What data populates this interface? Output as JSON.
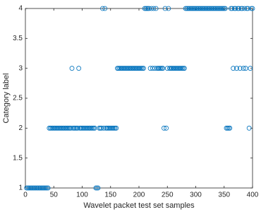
{
  "chart_data": {
    "type": "scatter",
    "xlabel": "Wavelet packet test set samples",
    "ylabel": "Category label",
    "color": "#0072bd",
    "marker": "open-circle",
    "xlim": [
      0,
      400
    ],
    "xticks": [
      0,
      50,
      100,
      150,
      200,
      250,
      300,
      350,
      400
    ],
    "ylim": [
      1,
      4
    ],
    "yticks": [
      1,
      1.5,
      2,
      2.5,
      3,
      3.5,
      4
    ],
    "x": [
      2,
      4,
      6,
      8,
      10,
      12,
      14,
      16,
      18,
      20,
      22,
      24,
      26,
      28,
      30,
      32,
      34,
      36,
      38,
      40,
      42,
      44,
      46,
      48,
      50,
      52,
      54,
      56,
      58,
      60,
      62,
      64,
      66,
      68,
      70,
      72,
      74,
      76,
      78,
      80,
      82,
      84,
      86,
      88,
      90,
      92,
      94,
      96,
      98,
      100,
      102,
      104,
      106,
      108,
      110,
      112,
      114,
      116,
      118,
      120,
      122,
      124,
      126,
      128,
      130,
      132,
      134,
      136,
      138,
      140,
      142,
      144,
      146,
      148,
      150,
      152,
      154,
      156,
      158,
      160,
      162,
      164,
      166,
      168,
      170,
      172,
      174,
      176,
      178,
      180,
      182,
      184,
      186,
      188,
      190,
      192,
      194,
      196,
      198,
      200,
      202,
      204,
      206,
      208,
      210,
      212,
      214,
      216,
      218,
      220,
      222,
      224,
      226,
      228,
      230,
      232,
      234,
      236,
      238,
      240,
      242,
      244,
      246,
      248,
      250,
      252,
      254,
      256,
      258,
      260,
      262,
      264,
      266,
      268,
      270,
      272,
      274,
      276,
      278,
      280,
      282,
      284,
      286,
      288,
      290,
      292,
      294,
      296,
      298,
      300,
      302,
      304,
      306,
      308,
      310,
      312,
      314,
      316,
      318,
      320,
      322,
      324,
      326,
      328,
      330,
      332,
      334,
      336,
      338,
      340,
      342,
      344,
      346,
      348,
      350,
      352,
      354,
      356,
      358,
      360,
      362,
      364,
      366,
      368,
      370,
      372,
      374,
      376,
      378,
      380,
      382,
      384,
      386,
      388,
      390,
      392,
      394,
      396,
      398,
      400
    ],
    "values": [
      1,
      1,
      1,
      1,
      1,
      1,
      1,
      1,
      1,
      1,
      1,
      1,
      1,
      1,
      1,
      1,
      1,
      1,
      1,
      1,
      2,
      2,
      2,
      2,
      2,
      2,
      2,
      2,
      2,
      2,
      2,
      2,
      2,
      2,
      2,
      2,
      2,
      2,
      2,
      2,
      3,
      2,
      2,
      2,
      2,
      2,
      3,
      2,
      2,
      2,
      2,
      2,
      2,
      2,
      2,
      2,
      2,
      2,
      2,
      2,
      2,
      1,
      1,
      1,
      2,
      2,
      2,
      4,
      2,
      4,
      2,
      2,
      2,
      2,
      2,
      2,
      2,
      2,
      2,
      2,
      3,
      3,
      3,
      3,
      3,
      3,
      3,
      3,
      3,
      3,
      3,
      3,
      3,
      3,
      3,
      3,
      3,
      3,
      3,
      3,
      3,
      3,
      3,
      3,
      4,
      4,
      4,
      4,
      4,
      3,
      4,
      3,
      4,
      3,
      4,
      3,
      3,
      3,
      3,
      3,
      3,
      2,
      4,
      2,
      3,
      4,
      3,
      3,
      3,
      3,
      3,
      3,
      3,
      3,
      3,
      3,
      3,
      3,
      3,
      3,
      4,
      4,
      4,
      4,
      4,
      4,
      4,
      4,
      4,
      4,
      4,
      4,
      4,
      4,
      4,
      4,
      4,
      4,
      4,
      4,
      4,
      4,
      4,
      4,
      4,
      4,
      4,
      4,
      4,
      4,
      4,
      4,
      4,
      4,
      4,
      4,
      2,
      2,
      2,
      2,
      4,
      4,
      3,
      4,
      4,
      3,
      4,
      4,
      3,
      4,
      4,
      3,
      4,
      3,
      4,
      4,
      2,
      3,
      4,
      4
    ]
  }
}
